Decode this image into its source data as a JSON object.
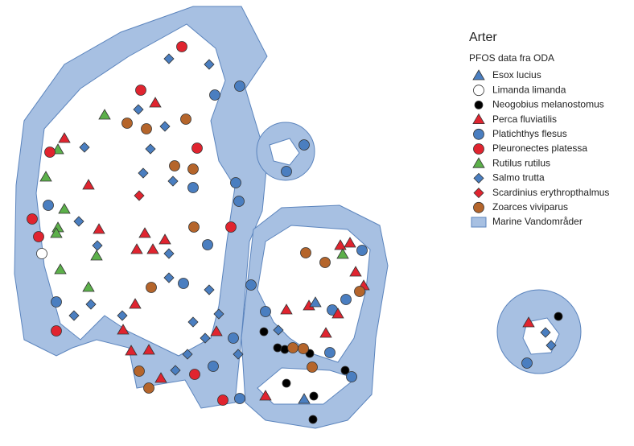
{
  "legend": {
    "title": "Arter",
    "group": "PFOS data fra ODA",
    "items": [
      "Esox lucius",
      "Limanda limanda",
      "Neogobius melanostomus",
      "Perca fluviatilis",
      "Platichthys flesus",
      "Pleuronectes platessa",
      "Rutilus rutilus",
      "Salmo trutta",
      "Scardinius erythropthalmus",
      "Zoarces viviparus",
      "Marine Vandområder"
    ]
  }
}
